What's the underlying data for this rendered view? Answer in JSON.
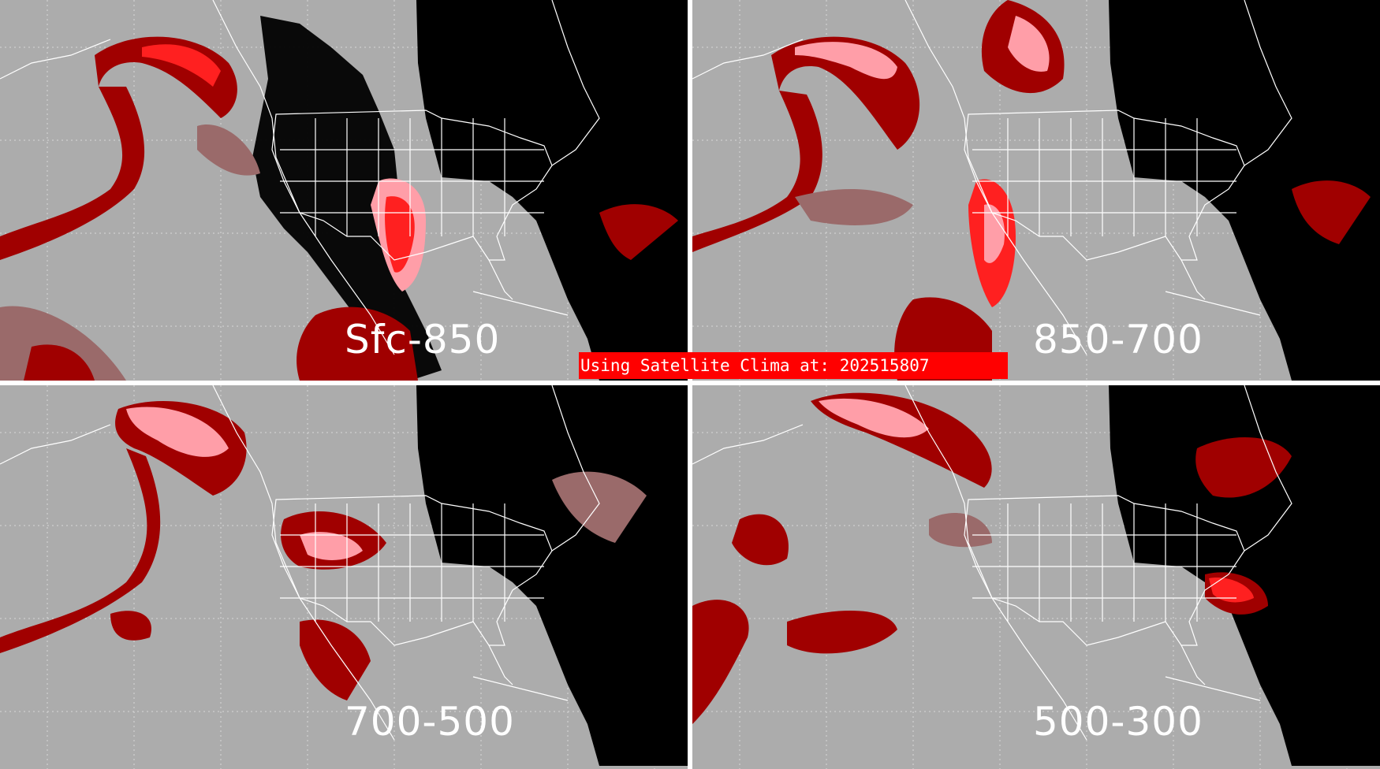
{
  "banner": {
    "text": "Using Satellite Clima at: 202515807"
  },
  "panels": [
    {
      "label": "Sfc-850"
    },
    {
      "label": "850-700"
    },
    {
      "label": "700-500"
    },
    {
      "label": "500-300"
    }
  ],
  "colors": {
    "background_gray": "#acacac",
    "night_black": "#000000",
    "light_red": "#ff9ea8",
    "bright_red": "#ff2020",
    "dark_red": "#a00000",
    "muted_red": "#9a6a6a",
    "borders_white": "#ffffff"
  }
}
